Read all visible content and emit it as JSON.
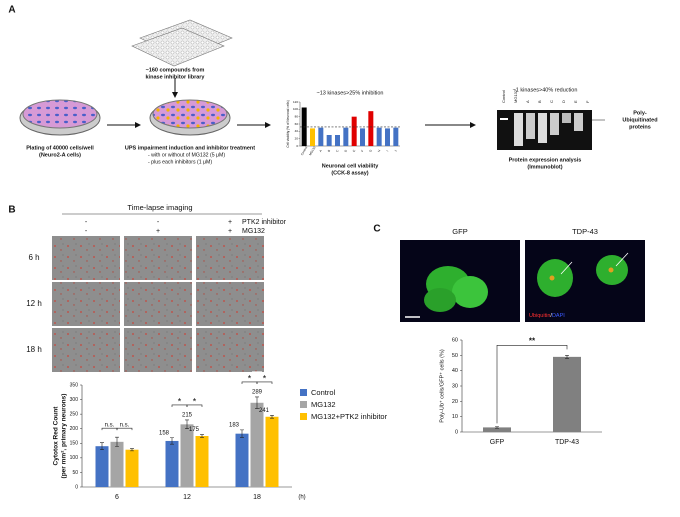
{
  "panel_a": {
    "label": "A",
    "library": [
      "~160 compounds from",
      "kinase inhibitor library"
    ],
    "step1": [
      "Plating of 40000 cells/well",
      "(Neuro2-A cells)"
    ],
    "step2": [
      "UPS impairment induction and inhibitor treatment",
      "- with  or  without of MG132 (5 μM)",
      "- plus each inhibitors (1 μM)"
    ],
    "screen": {
      "type": "bar",
      "title": "~13 kinases>25% inhibition",
      "ylabel": "Cell viability (% of Neuronal cells)",
      "categories": [
        "Control",
        "MG132",
        "A",
        "B",
        "C",
        "D",
        "E",
        "F",
        "G",
        "H",
        "I",
        "J"
      ],
      "values": [
        105,
        48,
        50,
        30,
        30,
        50,
        80,
        48,
        95,
        50,
        48,
        50
      ],
      "colors": [
        "#000000",
        "#ffc000",
        "#4472c4",
        "#4472c4",
        "#4472c4",
        "#4472c4",
        "#e00000",
        "#4472c4",
        "#e00000",
        "#4472c4",
        "#4472c4",
        "#4472c4"
      ],
      "ylim": [
        0,
        120
      ],
      "yticks": [
        0,
        20,
        40,
        60,
        80,
        100,
        120
      ],
      "threshold": 52
    },
    "screen_caption": [
      "Neuronal cell viability",
      "(CCK-8 assay)"
    ],
    "blot": {
      "title": "~1 kinases>40% reduction",
      "lanes": [
        "Control",
        "MG132",
        "A",
        "B",
        "C",
        "D",
        "E",
        "F"
      ],
      "caption": [
        "Protein expression analysis",
        "(Immunoblot)"
      ],
      "target": [
        "Poly-",
        "Ubiquitinated",
        "proteins"
      ]
    }
  },
  "panel_b": {
    "label": "B",
    "header": "Time-lapse imaging",
    "rows": [
      "PTK2 inhibitor",
      "MG132"
    ],
    "conditions": [
      [
        "-",
        "-"
      ],
      [
        "-",
        "+"
      ],
      [
        "+",
        "+"
      ]
    ],
    "timepoints": [
      "6 h",
      "12 h",
      "18 h"
    ],
    "chart": {
      "type": "bar",
      "ylabel": [
        "Cytotox Red Count",
        "(per mm², primary neurons)"
      ],
      "xlabel": "(h)",
      "categories": [
        "6",
        "12",
        "18"
      ],
      "series": [
        {
          "name": "Control",
          "color": "#4472c4",
          "values": [
            140,
            158,
            183
          ],
          "errors": [
            12,
            11,
            13
          ],
          "value_labels": [
            null,
            "158",
            "183"
          ]
        },
        {
          "name": "MG132",
          "color": "#a5a5a5",
          "values": [
            155,
            215,
            289
          ],
          "errors": [
            16,
            15,
            20
          ],
          "value_labels": [
            null,
            "215",
            "289"
          ]
        },
        {
          "name": "MG132+PTK2 inhibitor",
          "color": "#ffc000",
          "values": [
            128,
            175,
            241
          ],
          "errors": [
            4,
            5,
            5
          ],
          "value_labels": [
            null,
            "175",
            "241"
          ]
        }
      ],
      "ylim": [
        0,
        350
      ],
      "yticks": [
        0,
        50,
        100,
        150,
        200,
        250,
        300,
        350
      ],
      "annotations": [
        {
          "text": "n.s.",
          "category": 0,
          "series": [
            0,
            1
          ]
        },
        {
          "text": "n.s.",
          "category": 0,
          "series": [
            1,
            2
          ]
        },
        {
          "text": "*",
          "category": 1,
          "series": [
            0,
            1
          ]
        },
        {
          "text": "*",
          "category": 1,
          "series": [
            1,
            2
          ]
        },
        {
          "text": "*",
          "category": 2,
          "series": [
            0,
            1
          ]
        },
        {
          "text": "*",
          "category": 2,
          "series": [
            1,
            2
          ]
        }
      ]
    }
  },
  "panel_c": {
    "label": "C",
    "images": [
      "GFP",
      "TDP-43"
    ],
    "stain": [
      "Ubiquitin",
      "/",
      "DAPI"
    ],
    "chart": {
      "type": "bar",
      "ylabel": "Poly-Ub⁺ cells/GFP⁺ cells (%)",
      "categories": [
        "GFP",
        "TDP-43"
      ],
      "values": [
        3,
        49
      ],
      "errors": [
        0.5,
        1
      ],
      "color": "#808080",
      "ylim": [
        0,
        60
      ],
      "yticks": [
        0,
        10,
        20,
        30,
        40,
        50,
        60
      ],
      "annotation": "**"
    }
  }
}
